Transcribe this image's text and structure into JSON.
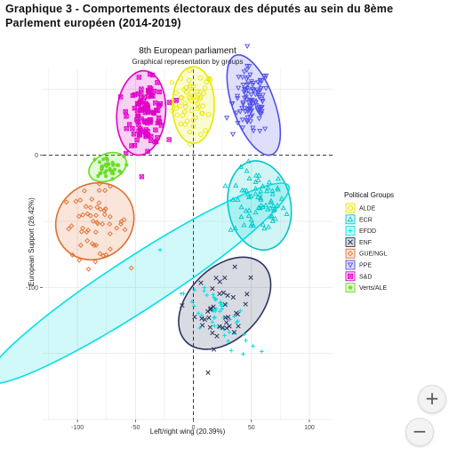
{
  "page": {
    "title": "Graphique 3 - Comportements électoraux des députés au sein du 8ème Parlement européen (2014-2019)"
  },
  "zoom": {
    "in_label": "+",
    "out_label": "−"
  },
  "chart_data": {
    "type": "scatter",
    "title": "8th European parliament",
    "subtitle": "Graphical representation by groups",
    "xlabel": "Left/right wing (20.39%)",
    "ylabel": "European Support (26.42%)",
    "xlim": [
      -130,
      120
    ],
    "ylim": [
      -200,
      65
    ],
    "xticks": [
      -100,
      -50,
      0,
      50,
      100
    ],
    "yticks": [
      0,
      -100
    ],
    "ytick_labels": [
      "0",
      "-100"
    ],
    "grid": true,
    "reference_lines": {
      "x": 0,
      "y": 0
    },
    "legend": {
      "title": "Political Groups",
      "position": "right"
    },
    "series": [
      {
        "name": "ALDE",
        "color": "#e8e800",
        "marker": "circle-open",
        "n": 60,
        "ellipse": {
          "cx": 0,
          "cy": 38,
          "rx": 18,
          "ry": 29,
          "angle": 0
        },
        "center": [
          0,
          40
        ],
        "spread": [
          9,
          12
        ]
      },
      {
        "name": "ECR",
        "color": "#00c8c8",
        "marker": "triangle-open",
        "n": 70,
        "ellipse": {
          "cx": 57,
          "cy": -38,
          "rx": 27,
          "ry": 34,
          "angle": 10
        },
        "center": [
          55,
          -37
        ],
        "spread": [
          12,
          13
        ]
      },
      {
        "name": "EFDD",
        "color": "#00e0e6",
        "marker": "plus",
        "n": 50,
        "ellipse": {
          "cx": -48,
          "cy": -97,
          "rx": 155,
          "ry": 20,
          "angle": 33
        },
        "center": [
          25,
          -120
        ],
        "spread": [
          12,
          20
        ]
      },
      {
        "name": "ENF",
        "color": "#2a3560",
        "marker": "cross",
        "n": 40,
        "ellipse": {
          "cx": 27,
          "cy": -112,
          "rx": 47,
          "ry": 27,
          "angle": 45
        },
        "center": [
          25,
          -117
        ],
        "spread": [
          12,
          14
        ]
      },
      {
        "name": "GUE/NGL",
        "color": "#e07030",
        "marker": "diamond-open",
        "n": 55,
        "ellipse": {
          "cx": -85,
          "cy": -50,
          "rx": 35,
          "ry": 28,
          "angle": 40
        },
        "center": [
          -85,
          -52
        ],
        "spread": [
          14,
          13
        ]
      },
      {
        "name": "PPE",
        "color": "#5050e8",
        "marker": "triangle-down-open",
        "n": 110,
        "ellipse": {
          "cx": 52,
          "cy": 38,
          "rx": 18,
          "ry": 40,
          "angle": 20
        },
        "center": [
          50,
          40
        ],
        "spread": [
          8,
          13
        ]
      },
      {
        "name": "S&D",
        "color": "#e000c8",
        "marker": "square-cross",
        "n": 110,
        "ellipse": {
          "cx": -45,
          "cy": 32,
          "rx": 21,
          "ry": 32,
          "angle": -5
        },
        "center": [
          -40,
          32
        ],
        "spread": [
          8,
          12
        ]
      },
      {
        "name": "Verts/ALE",
        "color": "#66dd22",
        "marker": "star",
        "n": 35,
        "ellipse": {
          "cx": -74,
          "cy": -9,
          "rx": 17,
          "ry": 10,
          "angle": 25
        },
        "center": [
          -74,
          -9
        ],
        "spread": [
          7,
          4
        ]
      }
    ]
  }
}
